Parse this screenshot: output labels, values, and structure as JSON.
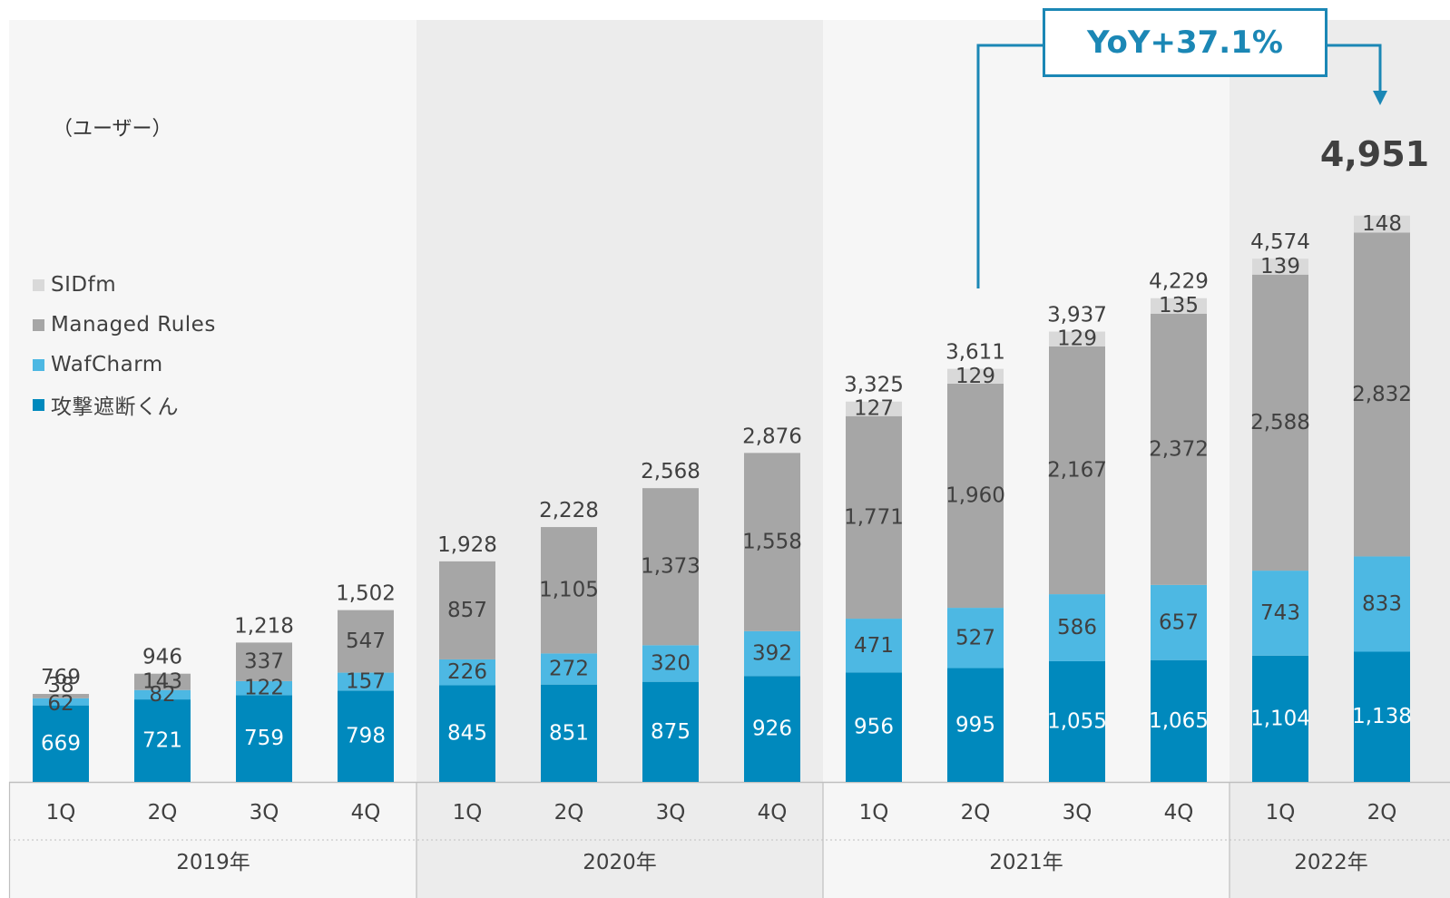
{
  "unit_label": "（ユーザー）",
  "colors": {
    "kougeki": "#0089bd",
    "wafcharm": "#4db8e3",
    "managed": "#a6a6a6",
    "sidfm": "#d9d9d9",
    "accent": "#1b87b5"
  },
  "legend": [
    {
      "label": "SIDfm",
      "color": "#d9d9d9"
    },
    {
      "label": "Managed Rules",
      "color": "#a6a6a6"
    },
    {
      "label": "WafCharm",
      "color": "#4db8e3"
    },
    {
      "label": "攻撃遮断くん",
      "color": "#0089bd"
    }
  ],
  "callout": {
    "text": "YoY+37.1%"
  },
  "chart_data": {
    "type": "bar",
    "stacked": true,
    "unit": "（ユーザー）",
    "categories": [
      "1Q",
      "2Q",
      "3Q",
      "4Q",
      "1Q",
      "2Q",
      "3Q",
      "4Q",
      "1Q",
      "2Q",
      "3Q",
      "4Q",
      "1Q",
      "2Q"
    ],
    "groups": [
      {
        "label": "2019年",
        "count": 4
      },
      {
        "label": "2020年",
        "count": 4
      },
      {
        "label": "2021年",
        "count": 4
      },
      {
        "label": "2022年",
        "count": 2
      }
    ],
    "series": [
      {
        "name": "攻撃遮断くん",
        "values": [
          "669",
          "721",
          "759",
          "798",
          "845",
          "851",
          "875",
          "926",
          "956",
          "995",
          "1,055",
          "1,065",
          "1,104",
          "1,138"
        ]
      },
      {
        "name": "WafCharm",
        "values": [
          "62",
          "82",
          "122",
          "157",
          "226",
          "272",
          "320",
          "392",
          "471",
          "527",
          "586",
          "657",
          "743",
          "833"
        ]
      },
      {
        "name": "Managed Rules",
        "values": [
          "38",
          "143",
          "337",
          "547",
          "857",
          "1,105",
          "1,373",
          "1,558",
          "1,771",
          "1,960",
          "2,167",
          "2,372",
          "2,588",
          "2,832"
        ]
      },
      {
        "name": "SIDfm",
        "values": [
          null,
          null,
          null,
          null,
          null,
          null,
          null,
          null,
          "127",
          "129",
          "129",
          "135",
          "139",
          "148"
        ]
      }
    ],
    "totals": [
      "769",
      "946",
      "1,218",
      "1,502",
      "1,928",
      "2,228",
      "2,568",
      "2,876",
      "3,325",
      "3,611",
      "3,937",
      "4,229",
      "4,574",
      "4,951"
    ],
    "ylim": [
      0,
      5200
    ],
    "legend_position": "left",
    "grid": false,
    "annotation": "YoY+37.1%"
  }
}
